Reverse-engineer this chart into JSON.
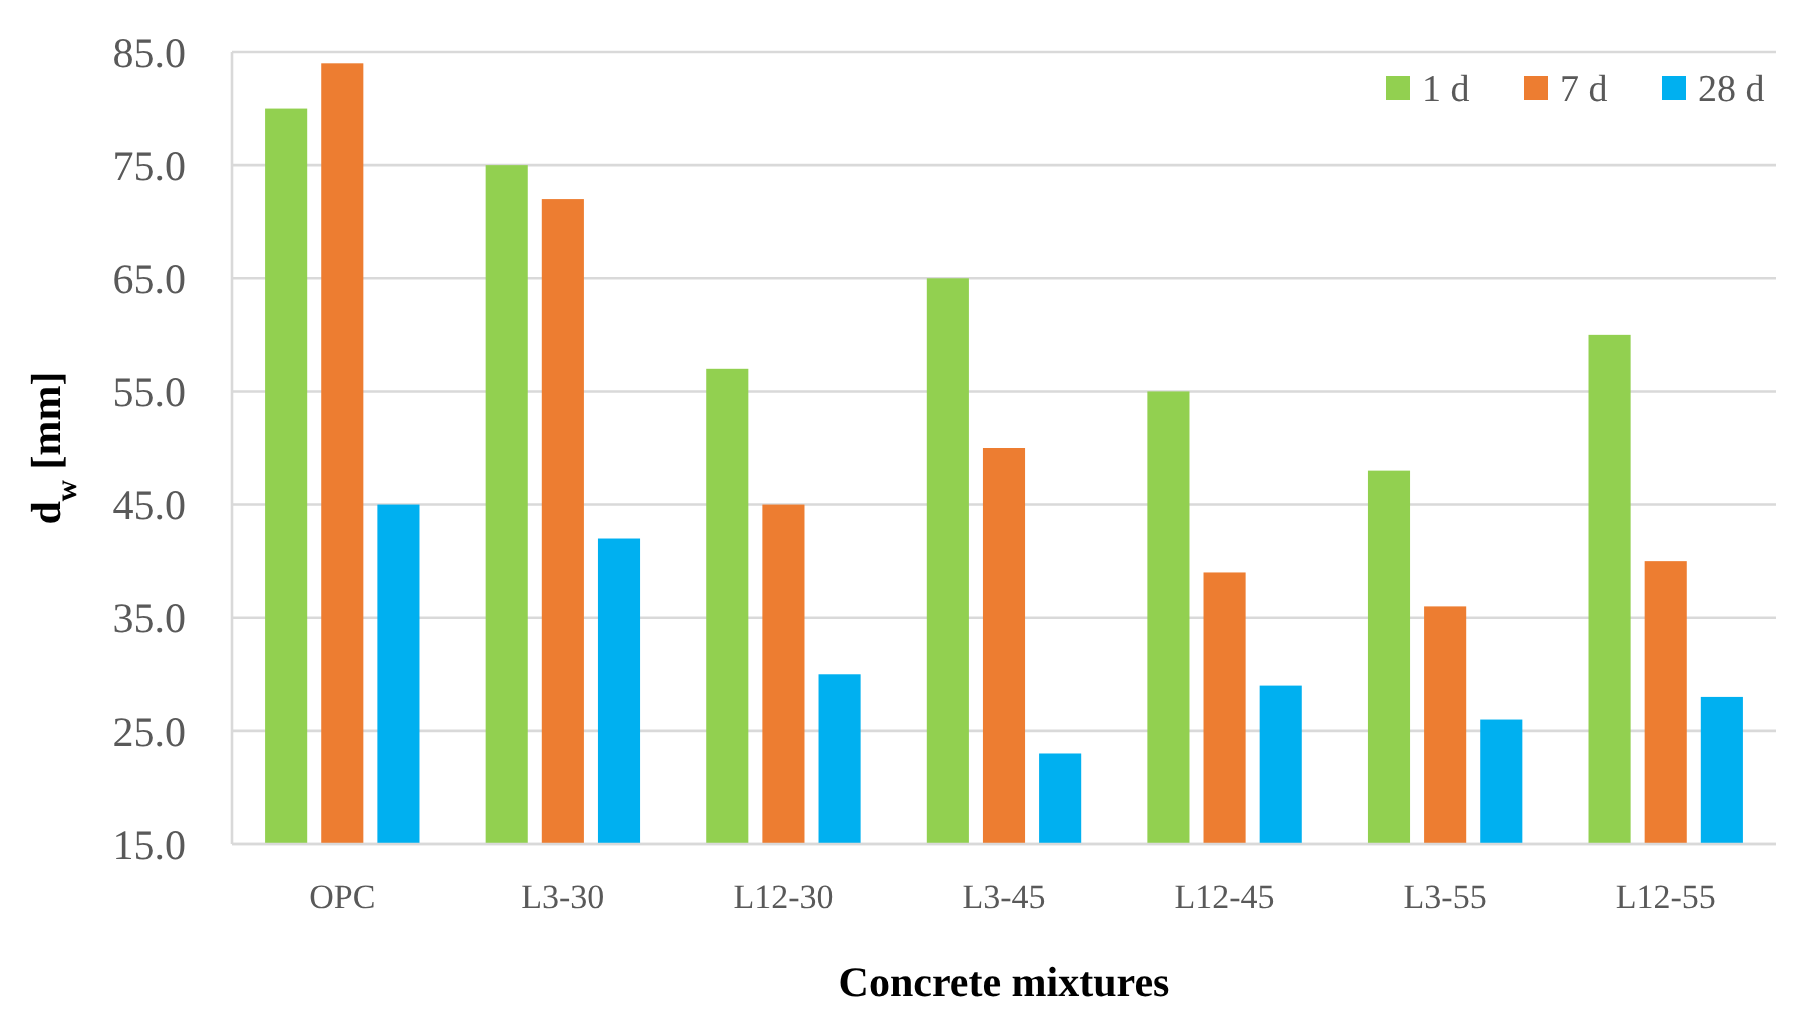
{
  "chart_data": {
    "type": "bar",
    "xlabel": "Concrete mixtures",
    "ylabel": "d$_{w}$ [mm]",
    "categories": [
      "OPC",
      "L3-30",
      "L12-30",
      "L3-45",
      "L12-45",
      "L3-55",
      "L12-55"
    ],
    "series": [
      {
        "name": "1 d",
        "color": "#92d050",
        "values": [
          80,
          75,
          57,
          65,
          55,
          48,
          60
        ]
      },
      {
        "name": "7 d",
        "color": "#ed7d31",
        "values": [
          84,
          72,
          45,
          50,
          39,
          36,
          40
        ]
      },
      {
        "name": "28 d",
        "color": "#00b0f0",
        "values": [
          45,
          42,
          30,
          23,
          29,
          26,
          28
        ]
      }
    ],
    "ylim": [
      15,
      85
    ],
    "yticks": [
      {
        "value": 15,
        "label": "15.0"
      },
      {
        "value": 25,
        "label": "25.0"
      },
      {
        "value": 35,
        "label": "35.0"
      },
      {
        "value": 45,
        "label": "45.0"
      },
      {
        "value": 55,
        "label": "55.0"
      },
      {
        "value": 65,
        "label": "65.0"
      },
      {
        "value": 75,
        "label": "75.0"
      },
      {
        "value": 85,
        "label": "85.0"
      }
    ],
    "grid": "y",
    "legend": "top right"
  }
}
